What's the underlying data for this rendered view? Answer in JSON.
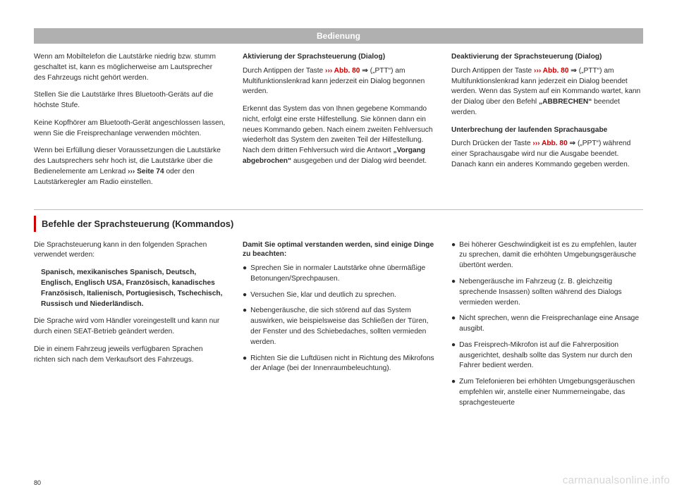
{
  "header": "Bedienung",
  "top": {
    "col1": {
      "p1": "Wenn am Mobiltelefon die Lautstärke niedrig bzw. stumm geschaltet ist, kann es mögli­cherweise am Lautsprecher des Fahrzeugs nicht gehört werden.",
      "p2": "Stellen Sie die Lautstärke Ihres Bluetooth-Ge­räts auf die höchste Stufe.",
      "p3": "Keine Kopfhörer am Bluetooth-Gerät ange­schlossen lassen, wenn Sie die Freisprechan­lage verwenden möchten.",
      "p4a": "Wenn bei Erfüllung dieser Voraussetzungen die Lautstärke des Lautsprechers sehr hoch ist, die Lautstärke über die Bedienelemente am Lenkrad ",
      "p4ref": "››› Seite 74",
      "p4b": " oder den Lautstärke­regler am Radio einstellen."
    },
    "col2": {
      "h1": "Aktivierung der Sprachsteuerung (Dialog)",
      "p1a": "Durch Antippen der Taste ",
      "p1ref": "››› Abb. 80",
      "p1glyph": " ⇒",
      "p1b": " („PTT“) am Multifunktionslenkrad kann jeder­zeit ein Dialog begonnen werden.",
      "p2a": "Erkennt das System das von Ihnen gegebene Kommando nicht, erfolgt eine erste Hilfestel­lung. Sie können dann ein neues Kommando geben. Nach einem zweiten Fehlversuch wie­derholt das System den zweiten Teil der Hilfe­stellung. Nach dem dritten Fehlversuch wird die Antwort ",
      "p2bold": "„Vorgang abgebrochen“",
      "p2b": " ausge­geben und der Dialog wird beendet."
    },
    "col3": {
      "h1": "Deaktivierung der Sprachsteuerung (Dialog)",
      "p1a": "Durch Antippen der Taste ",
      "p1ref": "››› Abb. 80",
      "p1glyph": " ⇒",
      "p1b": " („PTT“) am Multifunktionslenkrad kann jeder­zeit ein Dialog beendet werden. Wenn das System auf ein Kommando wartet, kann der Dialog über den Befehl ",
      "p1bold": "„ABBRECHEN“",
      "p1c": " been­det werden.",
      "h2": "Unterbrechung der laufenden Sprachausgabe",
      "p2a": "Durch Drücken der Taste ",
      "p2ref": "››› Abb. 80",
      "p2glyph": " ⇒",
      "p2b": " („PPT“) während einer Sprachausgabe wird nur die Ausgabe beendet. Danach kann ein anderes Kommando gegeben werden."
    }
  },
  "section_title": "Befehle der Sprachsteuerung (Kommandos)",
  "bottom": {
    "col1": {
      "p1": "Die Sprachsteuerung kann in den folgenden Sprachen verwendet werden:",
      "p2": "Spanisch, mexikanisches Spanisch, Deutsch, Englisch, Englisch USA, Französisch, kanadi­sches Französisch, Italienisch, Portugiesisch, Tschechisch, Russisch und Niederländisch.",
      "p3": "Die Sprache wird vom Händler voreingestellt und kann nur durch einen SEAT-Betrieb geän­dert werden.",
      "p4": "Die in einem Fahrzeug jeweils verfügbaren Sprachen richten sich nach dem Verkaufsort des Fahrzeugs."
    },
    "col2": {
      "h1": "Damit Sie optimal verstanden werden, sind einige Dinge zu beachten:",
      "b1": "Sprechen Sie in normaler Lautstärke ohne übermäßige Betonungen/Sprechpausen.",
      "b2": "Versuchen Sie, klar und deutlich zu spre­chen.",
      "b3": "Nebengeräusche, die sich störend auf das System auswirken, wie beispielsweise das Schließen der Türen, der Fenster und des Schiebedaches, sollten vermieden werden.",
      "b4": "Richten Sie die Luftdüsen nicht in Richtung des Mikrofons der Anlage (bei der Innen­raumbeleuchtung)."
    },
    "col3": {
      "b1": "Bei höherer Geschwindigkeit ist es zu emp­fehlen, lauter zu sprechen, damit die erhöh­ten Umgebungsgeräusche übertönt werden.",
      "b2": "Nebengeräusche im Fahrzeug (z. B. gleich­zeitig sprechende Insassen) sollten während des Dialogs vermieden werden.",
      "b3": "Nicht sprechen, wenn die Freisprechanlage eine Ansage ausgibt.",
      "b4": "Das Freisprech-Mikrofon ist auf die Fahrer­position ausgerichtet, deshalb sollte das Sys­tem nur durch den Fahrer bedient werden.",
      "b5": "Zum Telefonieren bei erhöhten Umge­bungsgeräuschen empfehlen wir, anstelle ei­ner Nummerneingabe, das sprachgesteuerte"
    }
  },
  "page_num": "80",
  "watermark": "carmanualsonline.info"
}
